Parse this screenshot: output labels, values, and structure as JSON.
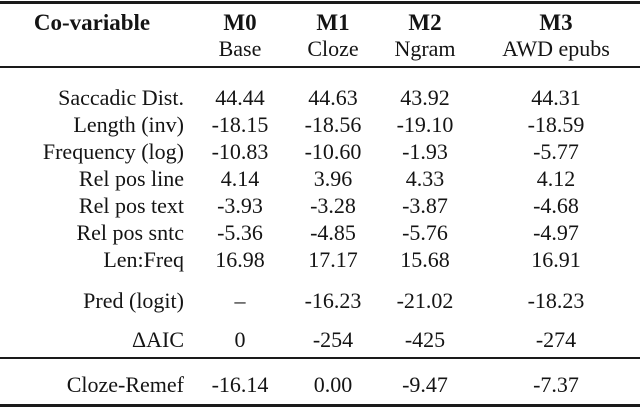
{
  "page": {
    "background": "#ffffff",
    "text_color": "#141414",
    "rule_color": "#1a1a1a"
  },
  "table": {
    "header": {
      "covariable_label": "Co-variable",
      "models": [
        {
          "id": "M0",
          "subtitle": "Base"
        },
        {
          "id": "M1",
          "subtitle": "Cloze"
        },
        {
          "id": "M2",
          "subtitle": "Ngram"
        },
        {
          "id": "M3",
          "subtitle": "AWD epubs"
        }
      ]
    },
    "rows": [
      {
        "label": "Saccadic Dist.",
        "values": [
          "44.44",
          "44.63",
          "43.92",
          "44.31"
        ]
      },
      {
        "label": "Length (inv)",
        "values": [
          "-18.15",
          "-18.56",
          "-19.10",
          "-18.59"
        ]
      },
      {
        "label": "Frequency (log)",
        "values": [
          "-10.83",
          "-10.60",
          "-1.93",
          "-5.77"
        ]
      },
      {
        "label": "Rel pos line",
        "values": [
          "4.14",
          "3.96",
          "4.33",
          "4.12"
        ]
      },
      {
        "label": "Rel pos text",
        "values": [
          "-3.93",
          "-3.28",
          "-3.87",
          "-4.68"
        ]
      },
      {
        "label": "Rel pos sntc",
        "values": [
          "-5.36",
          "-4.85",
          "-5.76",
          "-4.97"
        ]
      },
      {
        "label": "Len:Freq",
        "values": [
          "16.98",
          "17.17",
          "15.68",
          "16.91"
        ]
      },
      {
        "label": "Pred (logit)",
        "values": [
          "–",
          "-16.23",
          "-21.02",
          "-18.23"
        ]
      },
      {
        "label": "ΔAIC",
        "values": [
          "0",
          "-254",
          "-425",
          "-274"
        ]
      },
      {
        "label": "Cloze-Remef",
        "values": [
          "-16.14",
          "0.00",
          "-9.47",
          "-7.37"
        ]
      }
    ]
  }
}
